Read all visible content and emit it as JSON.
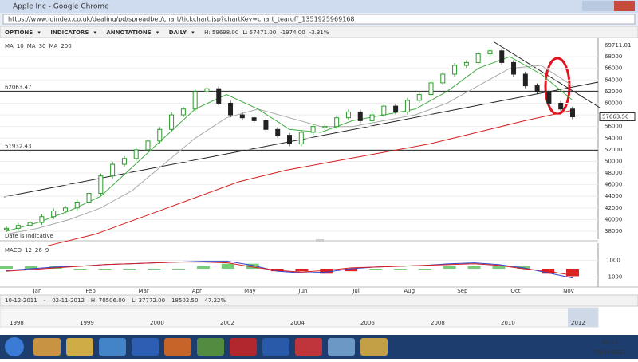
{
  "window": {
    "title": "Apple Inc - Google Chrome",
    "url": "https://www.igindex.co.uk/dealing/pd/spreadbet/chart/tickchart.jsp?chartKey=chart_tearoff_1351925969168"
  },
  "toolbar": {
    "items": [
      "OPTIONS",
      "INDICATORS",
      "ANNOTATIONS",
      "DAILY"
    ],
    "high": "H: 59698.00",
    "low": "L: 57471.00",
    "change": "-1974.00",
    "change_pct": "-3.31%"
  },
  "chart": {
    "ma_labels": [
      "MA",
      "10",
      "MA",
      "30",
      "MA",
      "200"
    ],
    "ylim": [
      38000,
      70000
    ],
    "yticks": [
      38000,
      40000,
      42000,
      44000,
      46000,
      48000,
      50000,
      52000,
      54000,
      56000,
      58000,
      60000,
      62000,
      64000,
      66000,
      68000
    ],
    "high_label": "69711.01",
    "last_price": 57663.5,
    "last_price_label": "57663.50",
    "levels": [
      {
        "value": 62063.47,
        "label": "62063.47"
      },
      {
        "value": 51932.43,
        "label": "51932.43"
      }
    ],
    "note": "Date is Indicative",
    "months": [
      "Jan",
      "Feb",
      "Mar",
      "Apr",
      "May",
      "Jun",
      "Jul",
      "Aug",
      "Sep",
      "Oct",
      "Nov"
    ],
    "closes": [
      38500,
      39000,
      39500,
      40500,
      41500,
      42000,
      43000,
      44500,
      47500,
      49500,
      50500,
      52000,
      53500,
      55500,
      58000,
      59000,
      62000,
      62500,
      60000,
      58000,
      57500,
      57000,
      55500,
      54500,
      53000,
      55000,
      56000,
      56000,
      57500,
      58500,
      57000,
      58000,
      59500,
      58500,
      60500,
      61500,
      63500,
      65000,
      66500,
      67000,
      68500,
      69000,
      67000,
      65000,
      63000,
      62000,
      60000,
      59000,
      57663.5
    ],
    "ma10": [
      38000,
      39500,
      41500,
      44000,
      49000,
      54000,
      59000,
      61500,
      59000,
      55500,
      55000,
      57000,
      58000,
      59000,
      62000,
      66000,
      68000,
      65000,
      60500
    ],
    "ma30": [
      37500,
      38500,
      40000,
      42000,
      45000,
      49500,
      54000,
      57500,
      59000,
      57500,
      56000,
      56000,
      57000,
      58000,
      60000,
      63000,
      66000,
      66500,
      63000
    ],
    "ma200": [
      35500,
      37500,
      40500,
      43500,
      46500,
      48500,
      50000,
      51500,
      53000,
      55000,
      57000,
      58800
    ],
    "macd_label": [
      "MACD",
      "12",
      "26",
      "9"
    ],
    "macd_ticks": [
      1000,
      -1000
    ],
    "macd": [
      -200,
      0,
      200,
      300,
      500,
      600,
      700,
      800,
      900,
      900,
      400,
      -300,
      -500,
      -400,
      0,
      200,
      300,
      400,
      600,
      700,
      500,
      100,
      -500,
      -1100
    ],
    "signal": [
      -300,
      -100,
      100,
      300,
      500,
      600,
      700,
      800,
      800,
      700,
      200,
      -200,
      -400,
      -200,
      100,
      200,
      300,
      400,
      500,
      600,
      400,
      0,
      -300,
      -800
    ]
  },
  "status": {
    "from": "10-12-2011",
    "sep": "-",
    "to": "02-11-2012",
    "high": "H: 70506.00",
    "low": "L: 37772.00",
    "change": "18502.50",
    "change_pct": "47.22%"
  },
  "navigator": {
    "years": [
      "1998",
      "1999",
      "2000",
      "2002",
      "2004",
      "2006",
      "2008",
      "2010",
      "2012"
    ]
  },
  "taskbar": {
    "time": "07:25",
    "date": "03/11/2012"
  }
}
